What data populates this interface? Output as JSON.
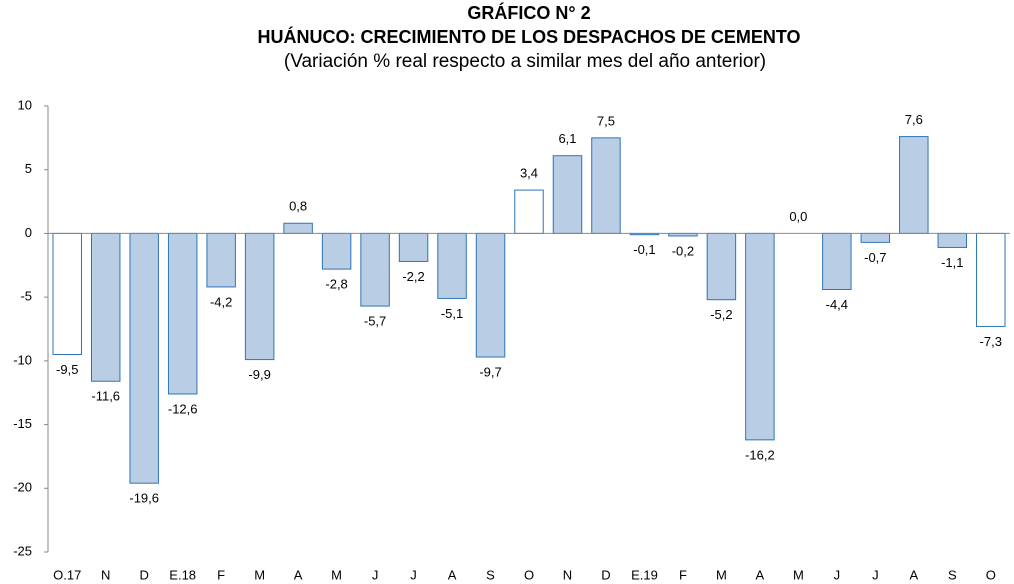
{
  "chart_data": {
    "type": "bar",
    "title": "GRÁFICO N° 2",
    "subtitle": "HUÁNUCO: CRECIMIENTO DE LOS DESPACHOS DE CEMENTO",
    "note": "(Variación % real respecto a similar mes del año anterior)",
    "categories": [
      "O.17",
      "N",
      "D",
      "E.18",
      "F",
      "M",
      "A",
      "M",
      "J",
      "J",
      "A",
      "S",
      "O",
      "N",
      "D",
      "E.19",
      "F",
      "M",
      "A",
      "M",
      "J",
      "J",
      "A",
      "S",
      "O"
    ],
    "values": [
      -9.5,
      -11.6,
      -19.6,
      -12.6,
      -4.2,
      -9.9,
      0.8,
      -2.8,
      -5.7,
      -2.2,
      -5.1,
      -9.7,
      3.4,
      6.1,
      7.5,
      -0.1,
      -0.2,
      -5.2,
      -16.2,
      0.0,
      -4.4,
      -0.7,
      7.6,
      -1.1,
      -7.3
    ],
    "value_labels": [
      "-9,5",
      "-11,6",
      "-19,6",
      "-12,6",
      "-4,2",
      "-9,9",
      "0,8",
      "-2,8",
      "-5,7",
      "-2,2",
      "-5,1",
      "-9,7",
      "3,4",
      "6,1",
      "7,5",
      "-0,1",
      "-0,2",
      "-5,2",
      "-16,2",
      "0,0",
      "-4,4",
      "-0,7",
      "7,6",
      "-1,1",
      "-7,3"
    ],
    "colors": [
      "#ffffff",
      "#b9cde5",
      "#b9cde5",
      "#b9cde5",
      "#b9cde5",
      "#b9cde5",
      "#b9cde5",
      "#b9cde5",
      "#b9cde5",
      "#b9cde5",
      "#b9cde5",
      "#b9cde5",
      "#ffffff",
      "#b9cde5",
      "#b9cde5",
      "#b9cde5",
      "#b9cde5",
      "#b9cde5",
      "#b9cde5",
      "#b9cde5",
      "#b9cde5",
      "#b9cde5",
      "#b9cde5",
      "#b9cde5",
      "#ffffff"
    ],
    "edge_color": "#2e75b6",
    "ylim": [
      -25,
      10
    ],
    "yticks": [
      -25,
      -20,
      -15,
      -10,
      -5,
      0,
      5,
      10
    ],
    "grid": false
  }
}
